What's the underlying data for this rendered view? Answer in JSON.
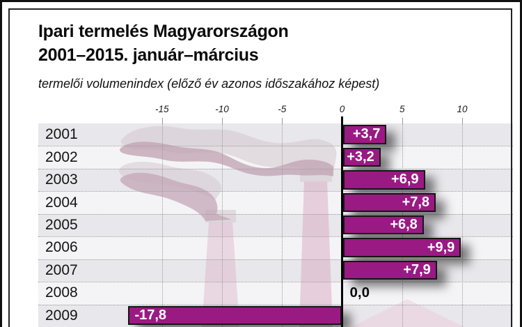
{
  "title": {
    "line1": "Ipari termelés Magyarországon",
    "line2": "2001–2015. január–március"
  },
  "subtitle": "termelői volumenindex (előző év azonos időszakához képest)",
  "chart_data": {
    "type": "bar",
    "orientation": "horizontal",
    "title": "Ipari termelés Magyarországon 2001–2015. január–március",
    "subtitle": "termelői volumenindex (előző év azonos időszakához képest)",
    "categories": [
      "2001",
      "2002",
      "2003",
      "2004",
      "2005",
      "2006",
      "2007",
      "2008",
      "2009"
    ],
    "values": [
      3.7,
      3.2,
      6.9,
      7.8,
      6.8,
      9.9,
      7.9,
      0.0,
      -17.8
    ],
    "value_labels": [
      "+3,7",
      "+3,2",
      "+6,9",
      "+7,8",
      "+6,8",
      "+9,9",
      "+7,9",
      "0,0",
      "-17,8"
    ],
    "x_ticks": [
      -15,
      -10,
      -5,
      0,
      5,
      10
    ],
    "x_tick_labels": [
      "-15",
      "-10",
      "-5",
      "0",
      "5",
      "10"
    ],
    "xlim": [
      -25.3,
      14.2
    ],
    "grid": "dotted",
    "legend": "none"
  },
  "colors": {
    "bar_fill": "#9a1a83",
    "bar_border": "#161616",
    "row_dark": "#e8e7eb",
    "row_light": "#f4f4f6",
    "gridline": "#9b9b9b",
    "axis_line": "#050505",
    "smoke_light": "#d6c9d2",
    "smoke_dark": "#c2a4b4",
    "chimney_pink": "#d8a8c2"
  }
}
